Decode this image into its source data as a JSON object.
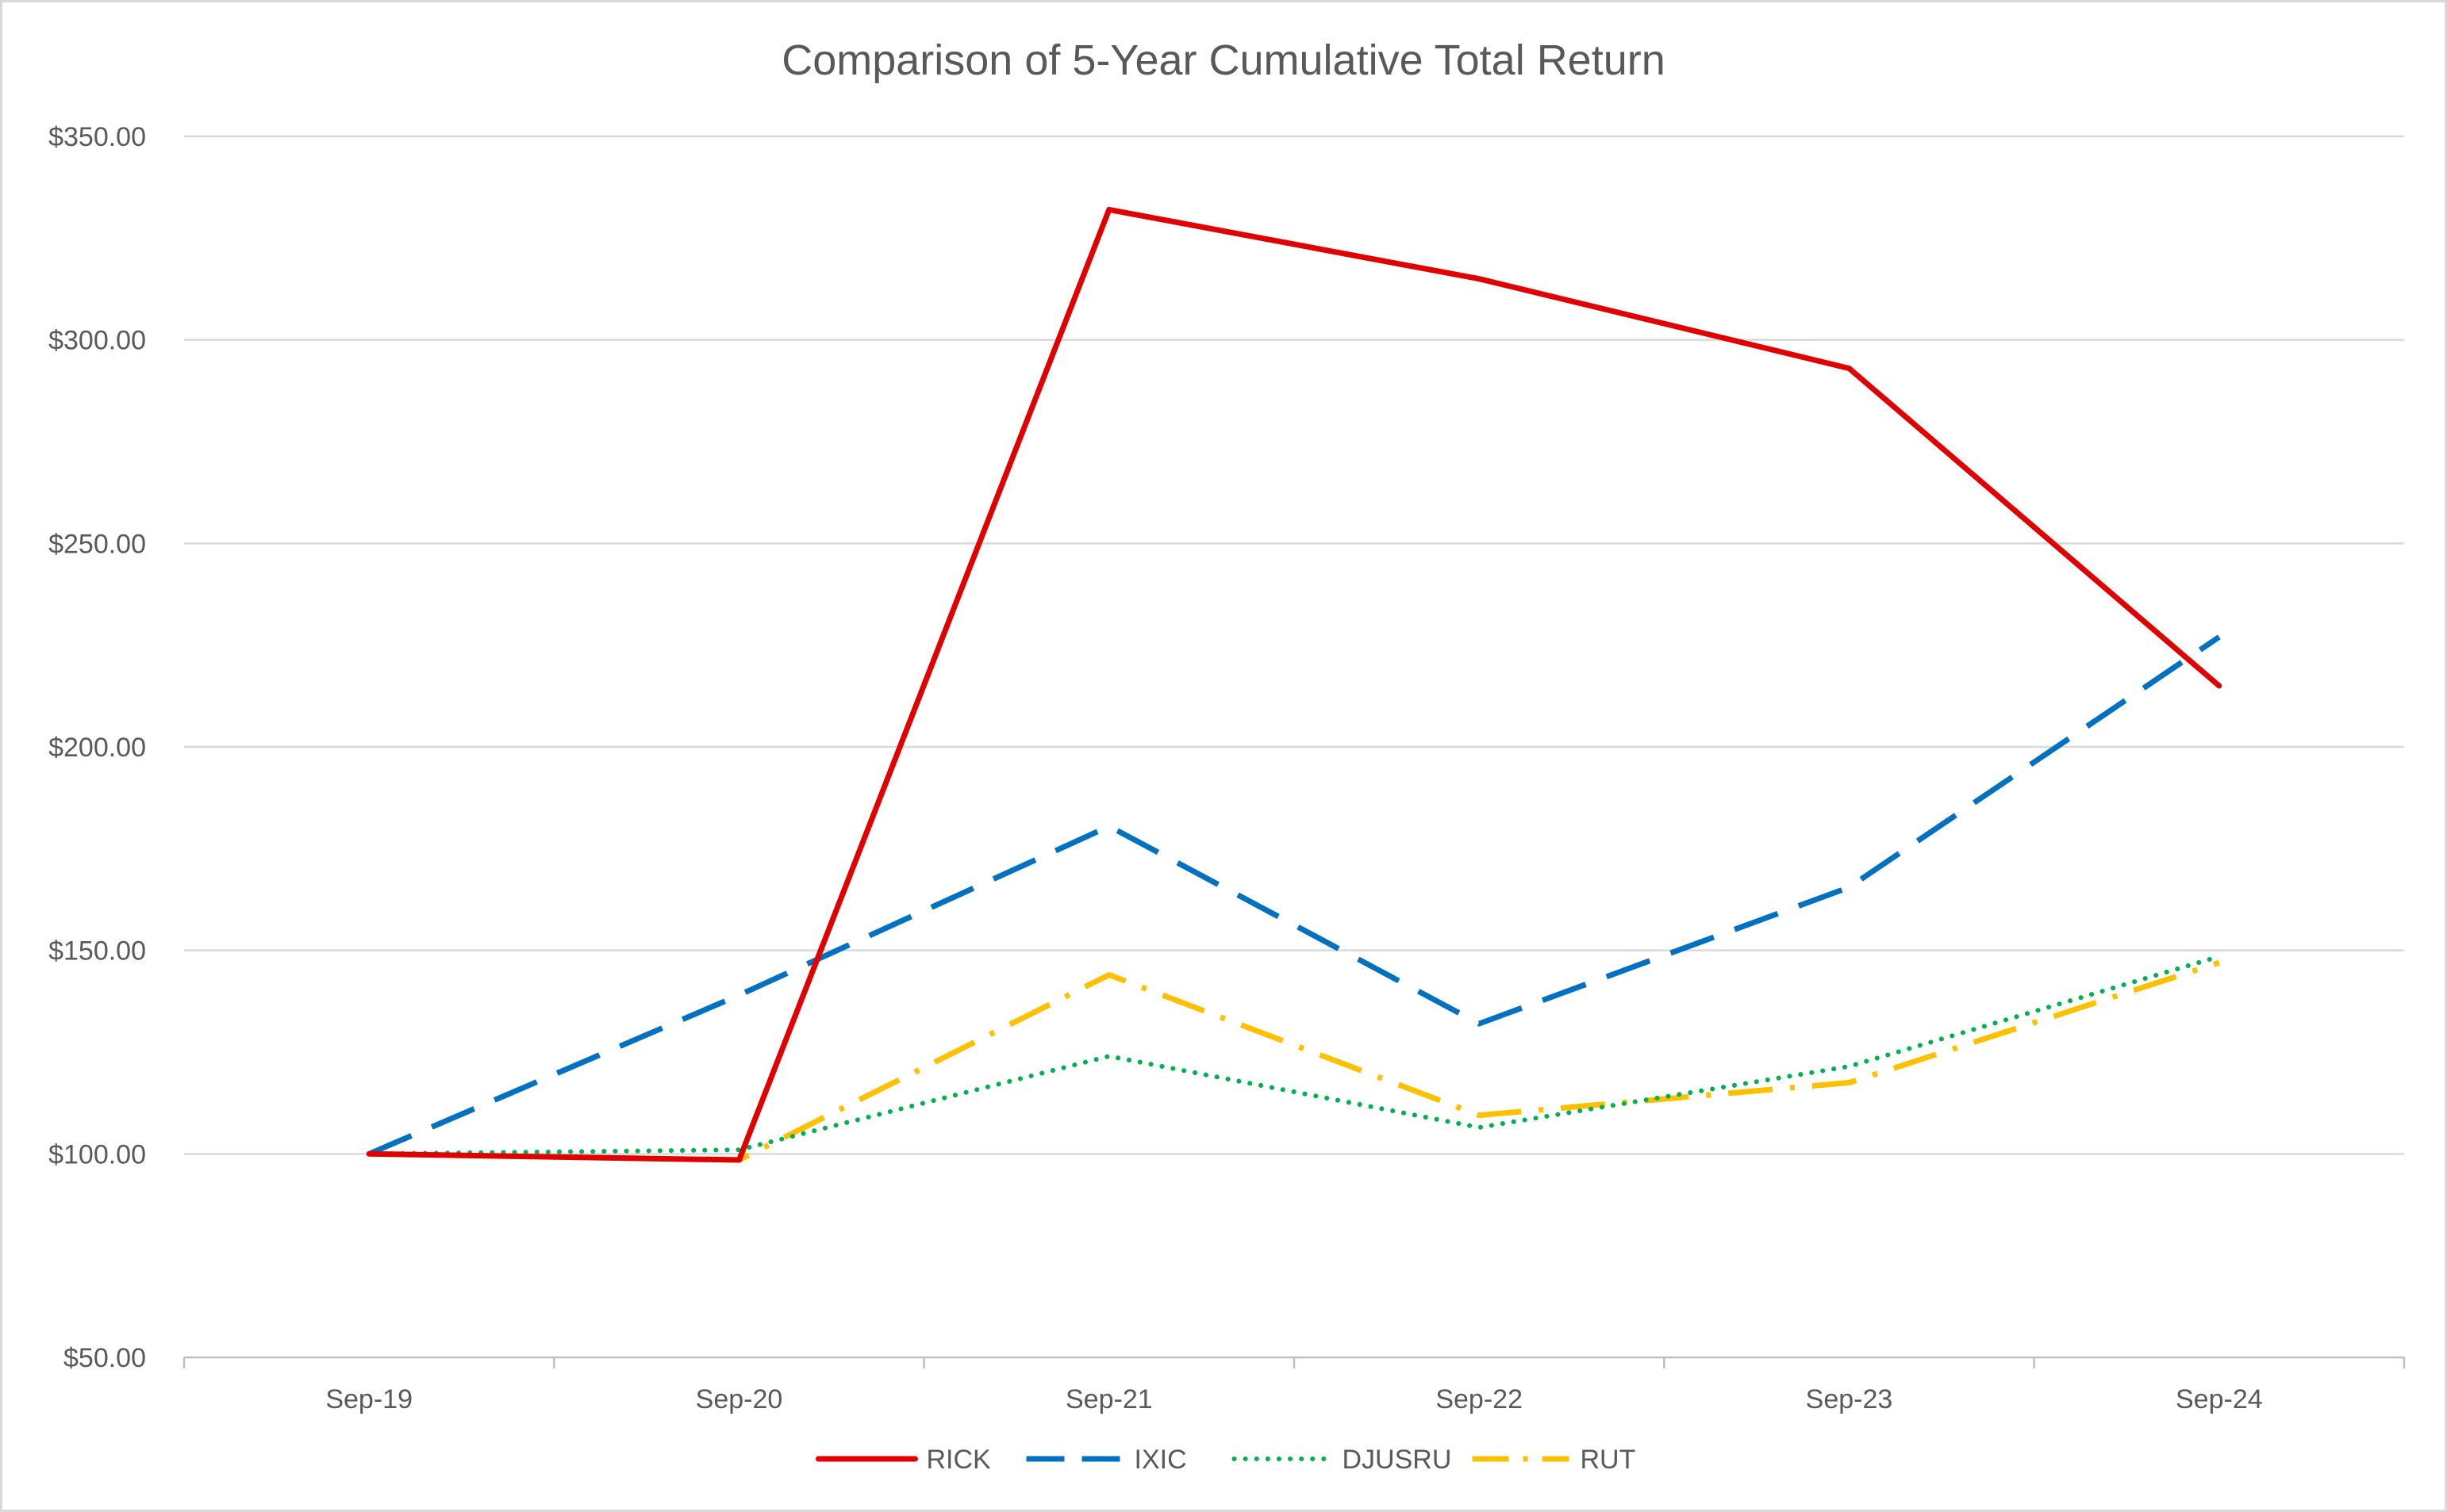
{
  "chart_data": {
    "type": "line",
    "title": "Comparison of 5-Year Cumulative Total Return",
    "categories": [
      "Sep-19",
      "Sep-20",
      "Sep-21",
      "Sep-22",
      "Sep-23",
      "Sep-24"
    ],
    "ylim": [
      50,
      350
    ],
    "yticks": [
      350,
      300,
      250,
      200,
      150,
      100,
      50
    ],
    "ytick_labels": [
      "$350.00",
      "$300.00",
      "$250.00",
      "$200.00",
      "$150.00",
      "$100.00",
      "$50.00"
    ],
    "grid": true,
    "legend_position": "bottom",
    "series": [
      {
        "name": "RICK",
        "color": "#e00000",
        "style": "solid",
        "values": [
          100,
          98.5,
          332,
          315,
          293,
          215
        ]
      },
      {
        "name": "IXIC",
        "color": "#0070c0",
        "style": "dashed",
        "values": [
          100,
          139,
          180.5,
          132,
          165.5,
          227
        ]
      },
      {
        "name": "DJUSRU",
        "color": "#00b050",
        "style": "dotted",
        "values": [
          100,
          101,
          124,
          106.5,
          121.5,
          148.5
        ]
      },
      {
        "name": "RUT",
        "color": "#ffc000",
        "style": "dash-dot",
        "values": [
          100,
          98.5,
          144,
          109.5,
          117.5,
          147
        ]
      }
    ]
  }
}
